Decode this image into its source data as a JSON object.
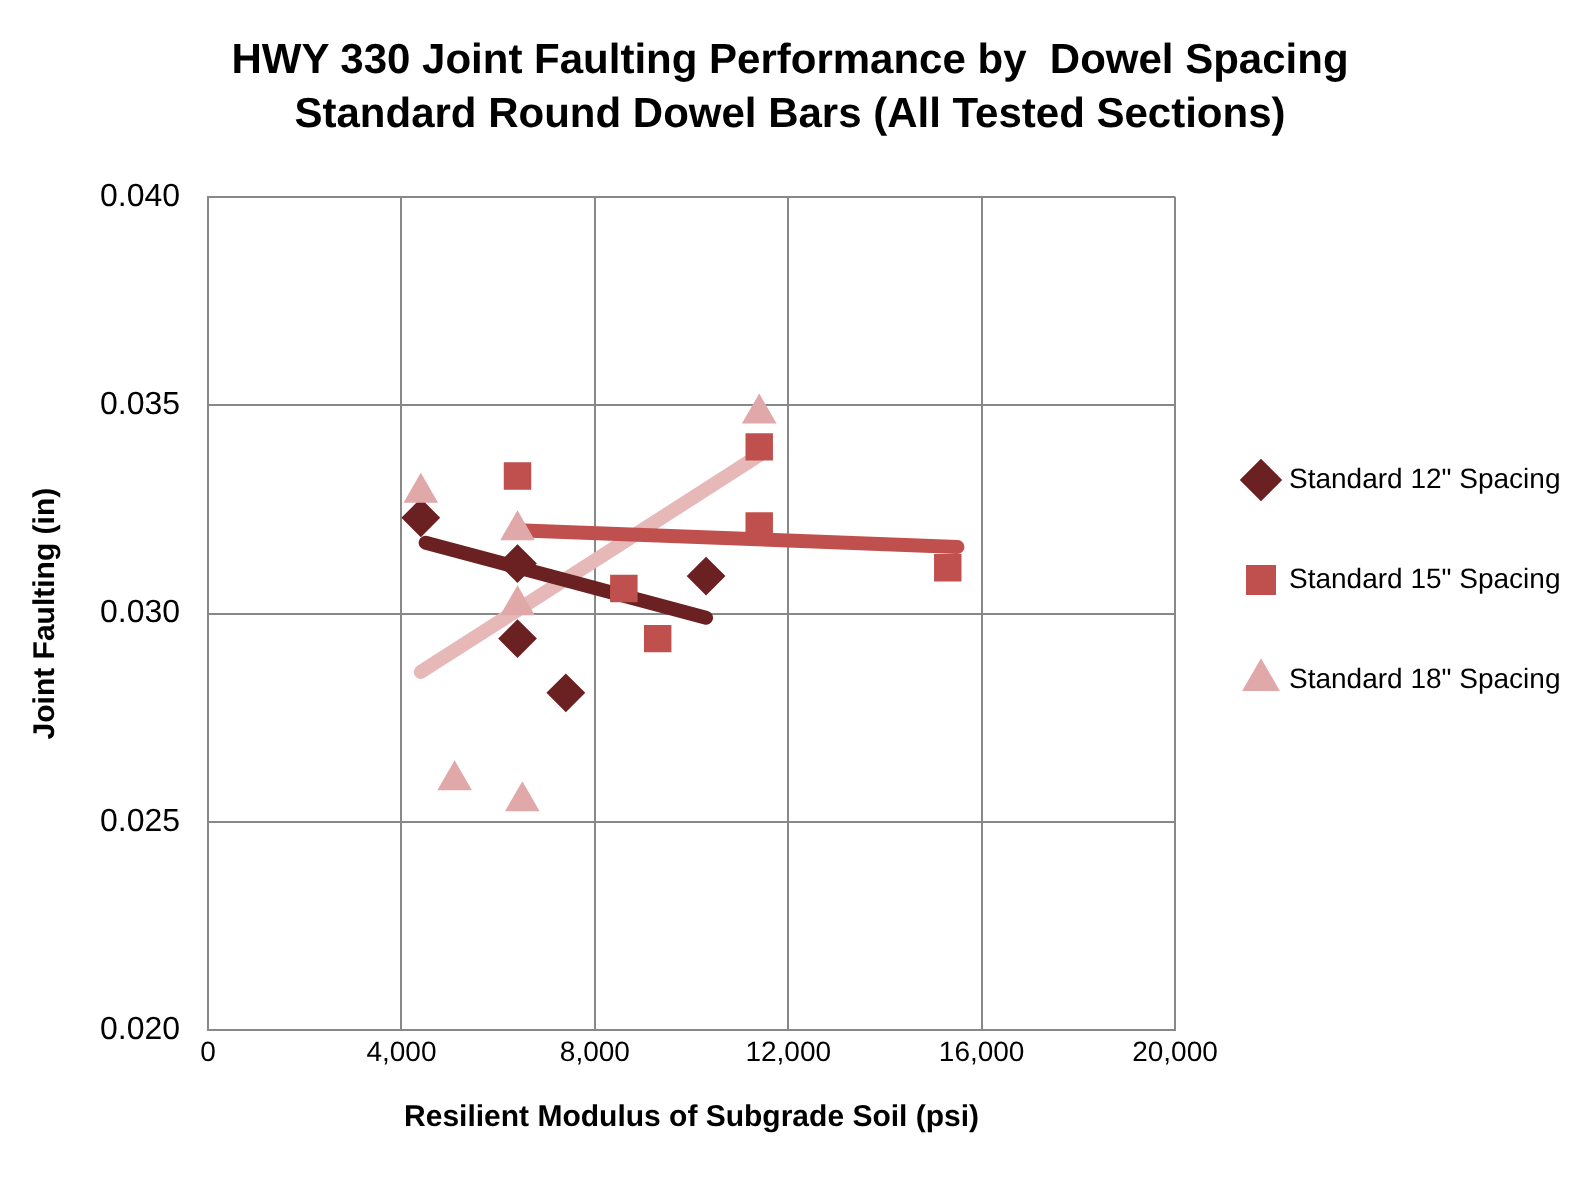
{
  "chart_data": {
    "type": "scatter",
    "title": "HWY 330 Joint Faulting Performance by  Dowel Spacing",
    "subtitle": "Standard Round Dowel Bars (All Tested Sections)",
    "xlabel": "Resilient Modulus of Subgrade Soil (psi)",
    "ylabel": "Joint Faulting (in)",
    "xlim": [
      0,
      20000
    ],
    "xticks": [
      {
        "value": 0,
        "label": "0"
      },
      {
        "value": 4000,
        "label": "4,000"
      },
      {
        "value": 8000,
        "label": "8,000"
      },
      {
        "value": 12000,
        "label": "12,000"
      },
      {
        "value": 16000,
        "label": "16,000"
      },
      {
        "value": 20000,
        "label": "20,000"
      }
    ],
    "ylim": [
      0.02,
      0.04
    ],
    "yticks": [
      {
        "value": 0.02,
        "label": "0.020"
      },
      {
        "value": 0.025,
        "label": "0.025"
      },
      {
        "value": 0.03,
        "label": "0.030"
      },
      {
        "value": 0.035,
        "label": "0.035"
      },
      {
        "value": 0.04,
        "label": "0.040"
      }
    ],
    "grid": true,
    "legend": "right",
    "series": [
      {
        "type": "line",
        "color": "#6b2121",
        "x": [
          4500,
          10300
        ],
        "values": [
          0.0317,
          0.0299
        ],
        "marker": "none"
      },
      {
        "type": "line",
        "color": "#c0504d",
        "x": [
          6400,
          15500
        ],
        "values": [
          0.032,
          0.0316
        ],
        "marker": "none"
      },
      {
        "type": "line",
        "color": "#e6b9b8",
        "x": [
          4400,
          11400
        ],
        "values": [
          0.0286,
          0.0338
        ],
        "marker": "none"
      },
      {
        "name": "Standard 12\" Spacing",
        "color": "#6b2121",
        "marker": "diamond",
        "x": [
          4400,
          6400,
          6400,
          7400,
          10300
        ],
        "values": [
          0.0323,
          0.0312,
          0.0294,
          0.0281,
          0.0309
        ]
      },
      {
        "name": "Standard 15\" Spacing",
        "color": "#c0504d",
        "marker": "square",
        "x": [
          6400,
          8600,
          9300,
          11400,
          11400,
          15300
        ],
        "values": [
          0.0333,
          0.0306,
          0.0294,
          0.034,
          0.0321,
          0.0311
        ]
      },
      {
        "name": "Standard 18\" Spacing",
        "color": "#e0a8a8",
        "marker": "triangle",
        "x": [
          4400,
          6400,
          6400,
          5100,
          6500,
          11400
        ],
        "values": [
          0.0329,
          0.032,
          0.0302,
          0.026,
          0.0255,
          0.0348
        ]
      }
    ]
  }
}
